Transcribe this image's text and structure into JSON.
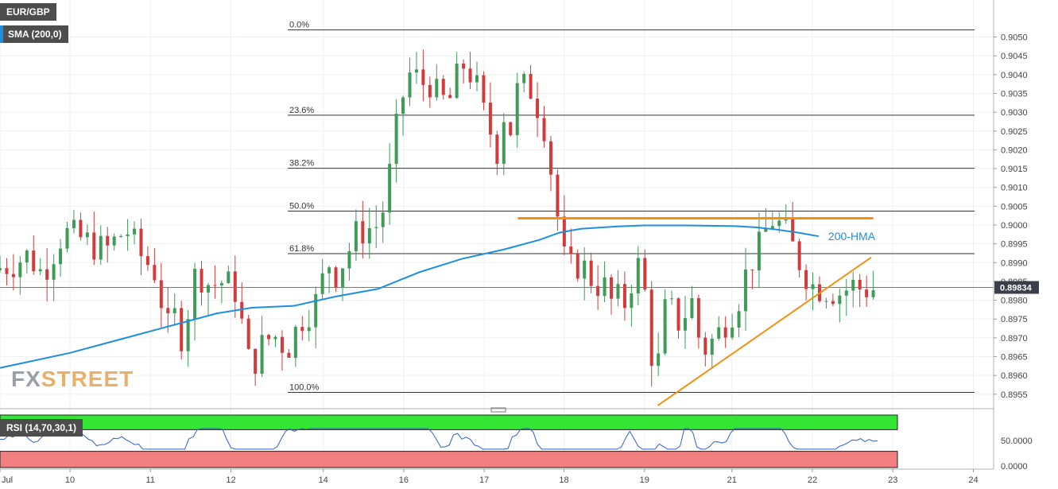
{
  "symbol": "EUR/GBP",
  "indicator_label": "SMA (200,0)",
  "rsi_label": "RSI (14,70,30,1)",
  "hma_label": "200-HMA",
  "price_tag": "0.89834",
  "logo": {
    "part1": "FX",
    "part2": "STREET"
  },
  "colors": {
    "bull": "#3f9b57",
    "bear": "#d23b3b",
    "hma": "#1e8fe0",
    "resistance": "#f5900e",
    "support": "#f5900e",
    "rsi_line": "#2e5fd1",
    "rsi_overbought": "#33e633",
    "rsi_oversold": "#f28080"
  },
  "chart_data": {
    "type": "candlestick",
    "title": "EUR/GBP",
    "price_axis": {
      "min": 0.8952,
      "max": 0.9059,
      "ticks": [
        "0.9050",
        "0.9045",
        "0.9040",
        "0.9035",
        "0.9030",
        "0.9025",
        "0.9020",
        "0.9015",
        "0.9010",
        "0.9005",
        "0.9000",
        "0.8995",
        "0.8990",
        "0.8985",
        "0.8980",
        "0.8975",
        "0.8970",
        "0.8965",
        "0.8960",
        "0.8955"
      ]
    },
    "x_axis": {
      "labels": [
        "Jul",
        "10",
        "11",
        "12",
        "14",
        "16",
        "17",
        "18",
        "19",
        "21",
        "22",
        "23",
        "24"
      ],
      "ticks": [
        0,
        10,
        21.5,
        33,
        46.2,
        57.7,
        69.2,
        80.6,
        92.1,
        104.6,
        116.1,
        127.6,
        139.1
      ],
      "range": [
        0,
        142
      ]
    },
    "fibonacci": [
      {
        "label": "0.0%",
        "value": 0.90519
      },
      {
        "label": "23.6%",
        "value": 0.90292
      },
      {
        "label": "38.2%",
        "value": 0.90151
      },
      {
        "label": "50.0%",
        "value": 0.90037
      },
      {
        "label": "61.8%",
        "value": 0.89924
      },
      {
        "label": "100.0%",
        "value": 0.89555
      }
    ],
    "resistance_line": {
      "x": [
        74,
        124.8
      ],
      "y": 0.90018
    },
    "support_trendline": {
      "x": [
        94,
        124.5
      ],
      "y": [
        0.8952,
        0.89914
      ]
    },
    "current_price_line": 0.89834,
    "hma_200": {
      "x": [
        0,
        10,
        18,
        25,
        31,
        36,
        42,
        48,
        54,
        60,
        66,
        72,
        77,
        80,
        83,
        88,
        92,
        94,
        98,
        102,
        105,
        108,
        111,
        114,
        117
      ],
      "y": [
        0.8962,
        0.8966,
        0.897,
        0.89735,
        0.89765,
        0.8978,
        0.89785,
        0.8981,
        0.8983,
        0.89875,
        0.8991,
        0.89935,
        0.8996,
        0.8998,
        0.8999,
        0.89996,
        0.89999,
        0.89999,
        0.89999,
        0.89998,
        0.89997,
        0.89994,
        0.89988,
        0.8998,
        0.8997
      ]
    },
    "candles_anchor": {
      "x": [
        0,
        3,
        5,
        7,
        10,
        13,
        16,
        19,
        21,
        23,
        25,
        26,
        27,
        29,
        31,
        33,
        35,
        36,
        37,
        38,
        40,
        42,
        44,
        46,
        47,
        48,
        49,
        51,
        52,
        55,
        56,
        57,
        58,
        59,
        60,
        61,
        62,
        63,
        65,
        67,
        68,
        69,
        70,
        72,
        73,
        74,
        75,
        77,
        79,
        80,
        81,
        82,
        83,
        84,
        85,
        86,
        87,
        88,
        89,
        90,
        91,
        92,
        93,
        94,
        95,
        96,
        97,
        98,
        99,
        100,
        101,
        102,
        103,
        104,
        105,
        106,
        107,
        108,
        109,
        110,
        111,
        113,
        115,
        117,
        119,
        121,
        123,
        124,
        125
      ],
      "y": [
        0.8988,
        0.899,
        0.8992,
        0.8987,
        0.8998,
        0.8996,
        0.8993,
        0.8999,
        0.8992,
        0.8988,
        0.8972,
        0.8976,
        0.897,
        0.8988,
        0.8984,
        0.8985,
        0.8982,
        0.8966,
        0.8962,
        0.8967,
        0.8971,
        0.8967,
        0.8975,
        0.8979,
        0.8985,
        0.899,
        0.8987,
        0.8994,
        0.8998,
        0.9,
        0.9006,
        0.9018,
        0.903,
        0.9038,
        0.9042,
        0.9036,
        0.904,
        0.9035,
        0.9032,
        0.9043,
        0.9041,
        0.9037,
        0.903,
        0.902,
        0.903,
        0.9025,
        0.9037,
        0.9036,
        0.9025,
        0.901,
        0.8998,
        0.8986,
        0.899,
        0.8989,
        0.8988,
        0.8983,
        0.8986,
        0.8979,
        0.8981,
        0.8978,
        0.8984,
        0.899,
        0.8984,
        0.8966,
        0.8963,
        0.8977,
        0.8977,
        0.8974,
        0.8977,
        0.898,
        0.8968,
        0.8967,
        0.897,
        0.8972,
        0.8976,
        0.8978,
        0.8983,
        0.899,
        0.8992,
        0.8996,
        0.9002,
        0.8999,
        0.8991,
        0.8984,
        0.8983,
        0.8982,
        0.8984,
        0.8983,
        0.8983
      ]
    },
    "rsi": {
      "range": [
        0,
        100
      ],
      "overbought": 70,
      "oversold": 30,
      "axis_label": "50.0000",
      "axis_label_low": "0.0000"
    }
  }
}
